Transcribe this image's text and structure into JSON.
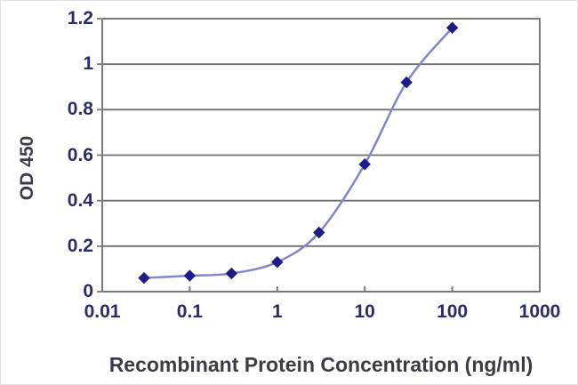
{
  "chart_data": {
    "type": "line",
    "title": "",
    "xlabel": "Recombinant Protein Concentration (ng/ml)",
    "ylabel": "OD 450",
    "x_scale": "log",
    "xlim": [
      0.01,
      1000
    ],
    "ylim": [
      0,
      1.2
    ],
    "x_ticks": [
      0.01,
      0.1,
      1,
      10,
      100,
      1000
    ],
    "x_tick_labels": [
      "0.01",
      "0.1",
      "1",
      "10",
      "100",
      "1000"
    ],
    "y_ticks": [
      0,
      0.2,
      0.4,
      0.6,
      0.8,
      1,
      1.2
    ],
    "y_tick_labels": [
      "0",
      "0.2",
      "0.4",
      "0.6",
      "0.8",
      "1",
      "1.2"
    ],
    "grid": "horizontal",
    "legend": "none",
    "series": [
      {
        "name": "OD 450",
        "x": [
          0.03,
          0.1,
          0.3,
          1,
          3,
          10,
          30,
          100
        ],
        "y": [
          0.06,
          0.07,
          0.08,
          0.13,
          0.26,
          0.56,
          0.92,
          1.16
        ],
        "marker": "diamond",
        "line_style": "smooth"
      }
    ]
  },
  "colors": {
    "background": "#ffffff",
    "plot_border": "#7a7a7a",
    "gridline": "#6f6f6f",
    "line": "#8484cb",
    "marker": "#1c1c8a",
    "tick_text": "#2c2c66",
    "title_text": "#3c3c47"
  }
}
